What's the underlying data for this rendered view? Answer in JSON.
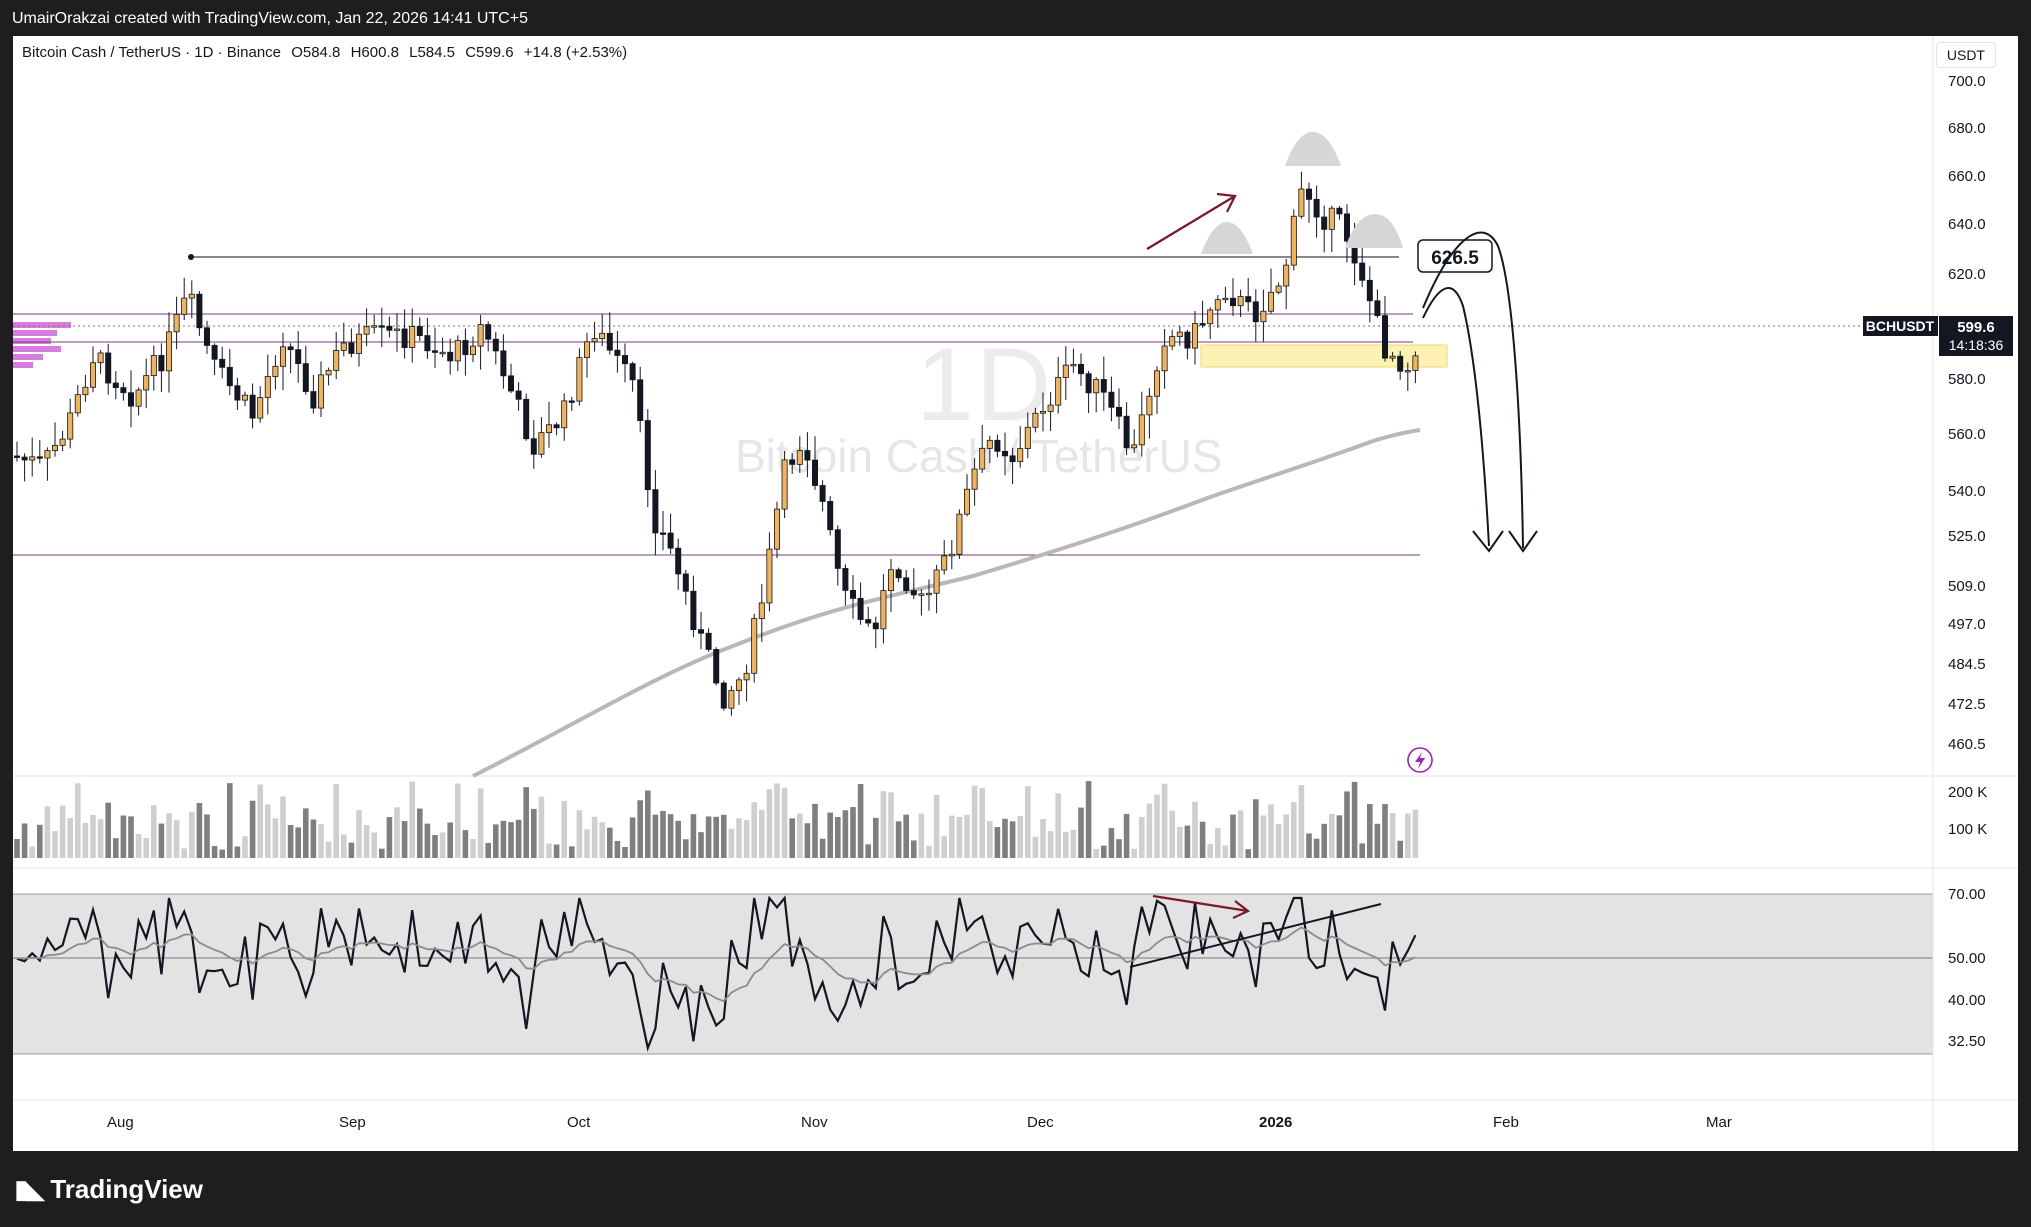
{
  "banner": "UmairOrakzai created with TradingView.com, Jan 22, 2026 14:41 UTC+5",
  "header": {
    "symbol": "Bitcoin Cash / TetherUS · 1D · Binance",
    "open": "O584.8",
    "high": "H600.8",
    "low": "L584.5",
    "close": "C599.6",
    "change": "+14.8 (+2.53%)"
  },
  "currency": "USDT",
  "watermark": {
    "interval": "1D",
    "name": "Bitcoin Cash / TetherUS"
  },
  "price_badge": {
    "ticker": "BCHUSDT",
    "price": "599.6",
    "countdown": "14:18:36"
  },
  "annotation_label": "626.5",
  "footer": "TradingView",
  "colors": {
    "up_candle": "#f0b35a",
    "down_candle": "#131722",
    "sma_line": "#b8b8b8",
    "arrow_red": "#7a1a2a",
    "zone_yellow": "#fdf2b3",
    "purple_line": "#7a3b82",
    "rsi_band": "#e3e3e3"
  },
  "chart_data": {
    "type": "candlestick",
    "price_axis": {
      "ticks": [
        "700.0",
        "680.0",
        "660.0",
        "640.0",
        "620.0",
        "580.0",
        "560.0",
        "540.0",
        "525.0",
        "509.0",
        "497.0",
        "484.5",
        "472.5",
        "460.5"
      ],
      "scale": "log"
    },
    "volume_axis": {
      "ticks": [
        "200 K",
        "100 K"
      ]
    },
    "rsi_axis": {
      "ticks": [
        "70.00",
        "50.00",
        "40.00",
        "32.50"
      ]
    },
    "x_labels": [
      "Aug",
      "Sep",
      "Oct",
      "Nov",
      "Dec",
      "2026",
      "Feb",
      "Mar"
    ],
    "key_levels": {
      "resistance": 626.5,
      "support": 517,
      "zone_low": 584,
      "zone_high": 592
    }
  }
}
